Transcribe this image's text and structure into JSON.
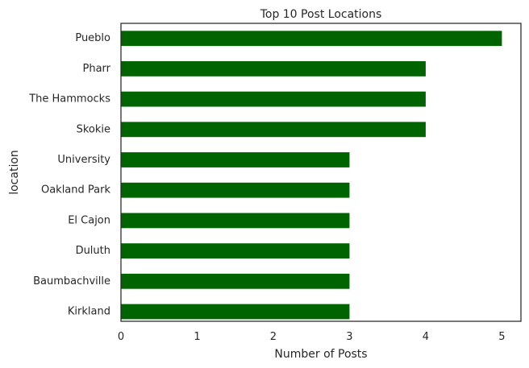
{
  "chart_data": {
    "type": "bar",
    "orientation": "horizontal",
    "title": "Top 10 Post Locations",
    "xlabel": "Number of Posts",
    "ylabel": "location",
    "categories": [
      "Pueblo",
      "Pharr",
      "The Hammocks",
      "Skokie",
      "University",
      "Oakland Park",
      "El Cajon",
      "Duluth",
      "Baumbachville",
      "Kirkland"
    ],
    "values": [
      5,
      4,
      4,
      4,
      3,
      3,
      3,
      3,
      3,
      3
    ],
    "xlim": [
      0,
      5.25
    ],
    "xticks": [
      0,
      1,
      2,
      3,
      4,
      5
    ],
    "grid": false,
    "bar_color": "#006400",
    "text_color": "#262626"
  }
}
